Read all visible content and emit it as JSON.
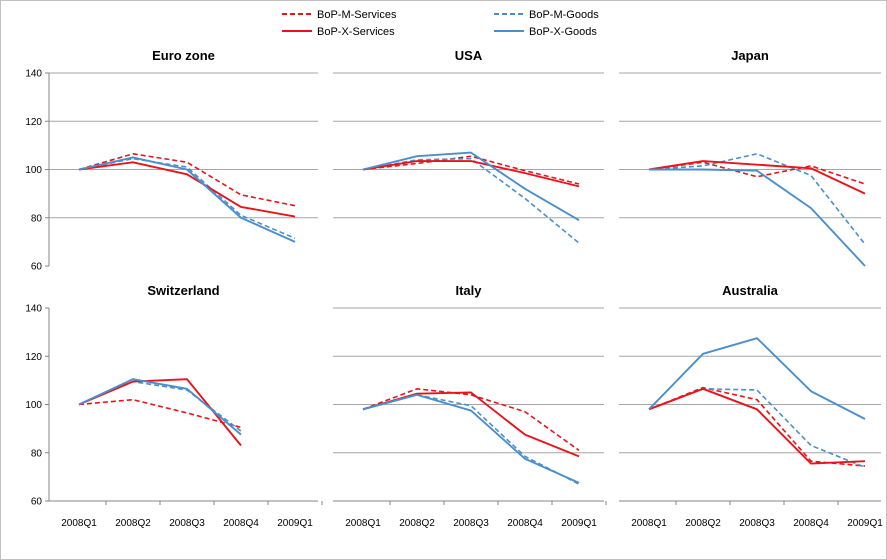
{
  "chart_data": [
    {
      "type": "line",
      "title": "Euro zone",
      "x": [
        "2008Q1",
        "2008Q2",
        "2008Q3",
        "2008Q4",
        "2009Q1"
      ],
      "ylim": [
        60,
        140
      ],
      "yticks": [
        "140",
        "120",
        "100",
        "80",
        "60"
      ],
      "show_x_labels": false,
      "grid": true,
      "series": [
        {
          "name": "BoP-M-Services",
          "values": [
            100,
            106.5,
            103,
            89.5,
            85
          ]
        },
        {
          "name": "BoP-M-Goods",
          "values": [
            100,
            104.5,
            101,
            81,
            71.5
          ]
        },
        {
          "name": "BoP-X-Services",
          "values": [
            100,
            103,
            98,
            84.5,
            80.5
          ]
        },
        {
          "name": "BoP-X-Goods",
          "values": [
            100,
            105,
            100,
            80,
            70
          ]
        }
      ]
    },
    {
      "type": "line",
      "title": "USA",
      "x": [
        "2008Q1",
        "2008Q2",
        "2008Q3",
        "2008Q4",
        "2009Q1"
      ],
      "ylim": [
        60,
        140
      ],
      "yticks": [],
      "show_x_labels": false,
      "grid": true,
      "series": [
        {
          "name": "BoP-M-Services",
          "values": [
            100,
            102.5,
            105.5,
            99.5,
            94
          ]
        },
        {
          "name": "BoP-M-Goods",
          "values": [
            100,
            104,
            104.5,
            88,
            69.5
          ]
        },
        {
          "name": "BoP-X-Services",
          "values": [
            100,
            103.5,
            103.5,
            98.5,
            93
          ]
        },
        {
          "name": "BoP-X-Goods",
          "values": [
            100,
            105.5,
            107,
            92,
            79
          ]
        }
      ]
    },
    {
      "type": "line",
      "title": "Japan",
      "x": [
        "2008Q1",
        "2008Q2",
        "2008Q3",
        "2008Q4",
        "2009Q1"
      ],
      "ylim": [
        60,
        140
      ],
      "yticks": [],
      "show_x_labels": false,
      "grid": true,
      "series": [
        {
          "name": "BoP-M-Services",
          "values": [
            100,
            103,
            97,
            101.5,
            94
          ]
        },
        {
          "name": "BoP-M-Goods",
          "values": [
            100,
            101.5,
            106.5,
            97.5,
            69
          ]
        },
        {
          "name": "BoP-X-Services",
          "values": [
            100,
            103.5,
            102,
            100.5,
            90
          ]
        },
        {
          "name": "BoP-X-Goods",
          "values": [
            100,
            100,
            99.5,
            84,
            60
          ]
        }
      ]
    },
    {
      "type": "line",
      "title": "Switzerland",
      "x": [
        "2008Q1",
        "2008Q2",
        "2008Q3",
        "2008Q4",
        "2009Q1"
      ],
      "ylim": [
        60,
        140
      ],
      "yticks": [
        "140",
        "120",
        "100",
        "80",
        "60"
      ],
      "show_x_labels": true,
      "grid": false,
      "series": [
        {
          "name": "BoP-M-Services",
          "values": [
            100,
            102,
            96.5,
            90.5,
            null
          ]
        },
        {
          "name": "BoP-M-Goods",
          "values": [
            100,
            109.5,
            106,
            89,
            null
          ]
        },
        {
          "name": "BoP-X-Services",
          "values": [
            100,
            109.5,
            110.5,
            83,
            null
          ]
        },
        {
          "name": "BoP-X-Goods",
          "values": [
            100,
            110.5,
            106.5,
            87.5,
            null
          ]
        }
      ]
    },
    {
      "type": "line",
      "title": "Italy",
      "x": [
        "2008Q1",
        "2008Q2",
        "2008Q3",
        "2008Q4",
        "2009Q1"
      ],
      "ylim": [
        60,
        140
      ],
      "yticks": [],
      "show_x_labels": true,
      "grid": true,
      "series": [
        {
          "name": "BoP-M-Services",
          "values": [
            98,
            106.5,
            104,
            97,
            81
          ]
        },
        {
          "name": "BoP-M-Goods",
          "values": [
            98,
            104,
            99.5,
            78.5,
            67
          ]
        },
        {
          "name": "BoP-X-Services",
          "values": [
            98,
            104.5,
            105,
            87.5,
            78.5
          ]
        },
        {
          "name": "BoP-X-Goods",
          "values": [
            98,
            104,
            97.5,
            77.5,
            67.5
          ]
        }
      ]
    },
    {
      "type": "line",
      "title": "Australia",
      "x": [
        "2008Q1",
        "2008Q2",
        "2008Q3",
        "2008Q4",
        "2009Q1"
      ],
      "ylim": [
        60,
        140
      ],
      "yticks": [],
      "show_x_labels": true,
      "grid": true,
      "series": [
        {
          "name": "BoP-M-Services",
          "values": [
            98,
            107,
            102,
            76.5,
            74.5
          ]
        },
        {
          "name": "BoP-M-Goods",
          "values": [
            98,
            106.5,
            106,
            83,
            74
          ]
        },
        {
          "name": "BoP-X-Services",
          "values": [
            98,
            106.5,
            98,
            75.5,
            76.5
          ]
        },
        {
          "name": "BoP-X-Goods",
          "values": [
            98,
            121,
            127.5,
            105.5,
            94
          ]
        }
      ]
    }
  ],
  "legend": {
    "position": "top-center",
    "items": [
      {
        "label": "BoP-M-Services",
        "color": "#e8141b",
        "dash": true
      },
      {
        "label": "BoP-M-Goods",
        "color": "#4a8fcc",
        "dash": true
      },
      {
        "label": "BoP-X-Services",
        "color": "#e8141b",
        "dash": false
      },
      {
        "label": "BoP-X-Goods",
        "color": "#4a8fcc",
        "dash": false
      }
    ]
  },
  "colors": {
    "services": "#e8141b",
    "goods": "#4a8fcc",
    "grid": "#a6a6a6",
    "axis": "#868686"
  }
}
